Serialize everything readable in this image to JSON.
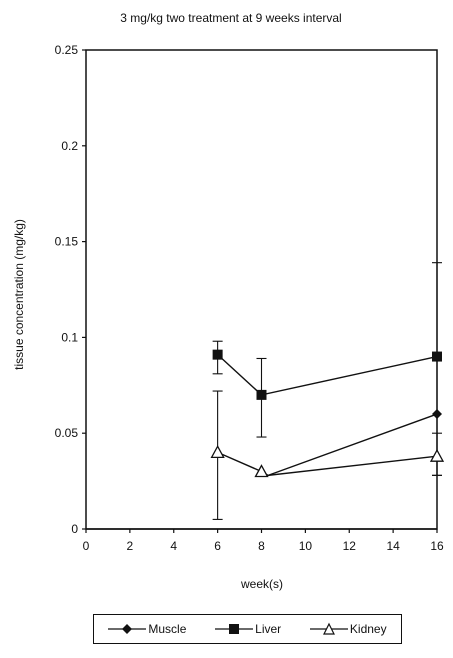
{
  "chart_data": {
    "type": "line",
    "title": "3 mg/kg two treatment at 9 weeks interval",
    "xlabel": "week(s)",
    "ylabel": "tissue concentration (mg/kg)",
    "xlim": [
      0,
      16
    ],
    "ylim": [
      0,
      0.25
    ],
    "x_ticks": [
      "0",
      "2",
      "4",
      "6",
      "8",
      "10",
      "12",
      "14",
      "16"
    ],
    "y_ticks": [
      "0",
      "0.05",
      "0.1",
      "0.15",
      "0.2",
      "0.25"
    ],
    "grid": false,
    "legend_position": "bottom",
    "series": [
      {
        "name": "Muscle",
        "marker": "diamond",
        "color": "#111111",
        "x": [
          0,
          16
        ],
        "y": [
          0,
          0
        ],
        "error_low": [],
        "error_high": []
      },
      {
        "name": "Liver",
        "marker": "square",
        "color": "#111111",
        "x": [
          6,
          8,
          16
        ],
        "y": [
          0.091,
          0.07,
          0.09
        ],
        "error_low": [
          0.081,
          0.048,
          0.028
        ],
        "error_high": [
          0.098,
          0.089,
          0.139
        ]
      },
      {
        "name": "Kidney",
        "marker": "triangle-open",
        "color": "#111111",
        "x": [
          6,
          8,
          8.3,
          16
        ],
        "y": [
          0.04,
          0.03,
          0.028,
          0.038
        ],
        "error_low": [
          0.005,
          0.03,
          0.028,
          0.028
        ],
        "error_high": [
          0.072,
          0.03,
          0.028,
          0.05
        ]
      },
      {
        "name": "",
        "marker": "diamond",
        "color": "#111111",
        "x": [
          8.3,
          16
        ],
        "y": [
          0.028,
          0.06
        ],
        "error_low": [],
        "error_high": []
      }
    ]
  }
}
